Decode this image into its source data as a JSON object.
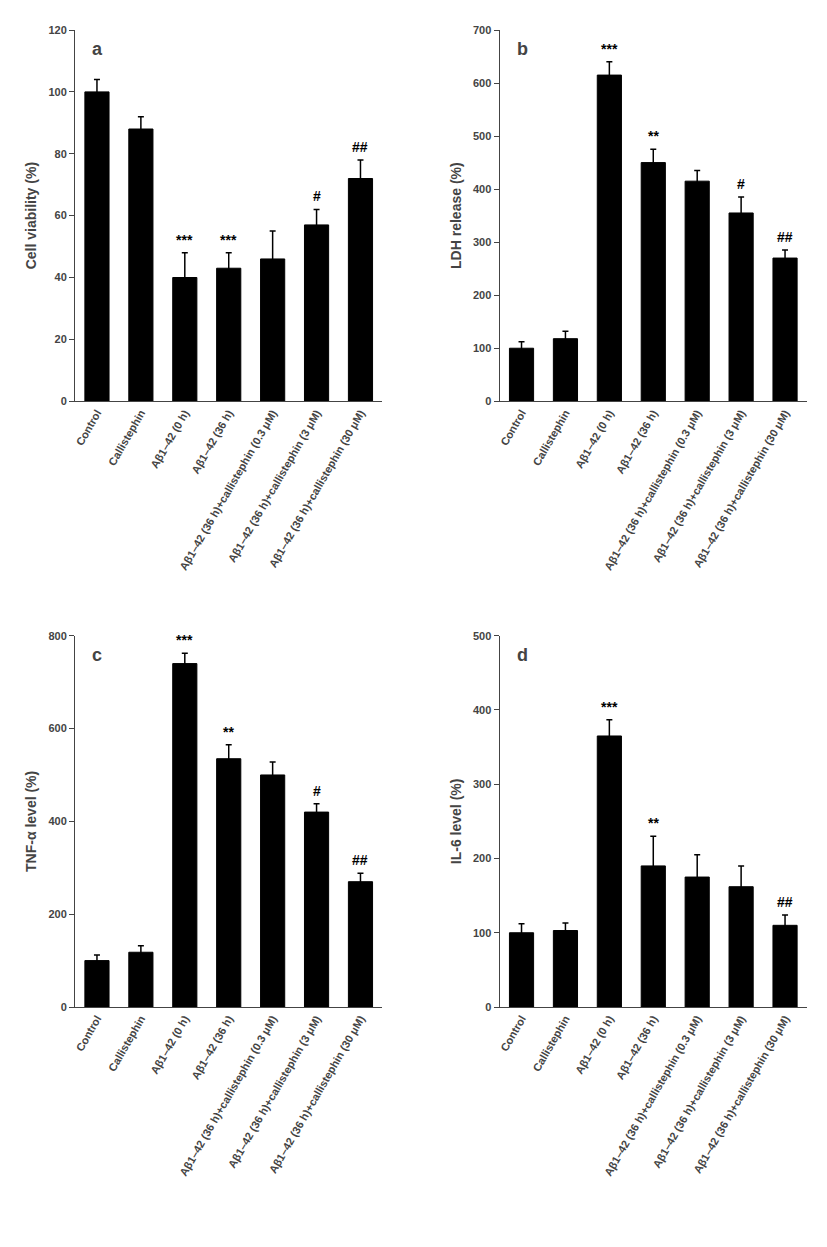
{
  "chart_data": [
    {
      "type": "bar",
      "title": "a",
      "ylabel": "Cell viability (%)",
      "categories": [
        "Control",
        "Callistephin",
        "Aβ1–42 (0 h)",
        "Aβ1–42 (36 h)",
        "Aβ1–42 (36 h)+callistephin (0.3 μM)",
        "Aβ1–42 (36 h)+callistephin (3 μM)",
        "Aβ1–42 (36 h)+callistephin (30 μM)"
      ],
      "values": [
        100,
        88,
        40,
        43,
        46,
        57,
        72
      ],
      "errors": [
        4,
        4,
        8,
        5,
        9,
        5,
        6
      ],
      "color": "#000000",
      "ylim": [
        0,
        120
      ],
      "yticks": [
        0,
        20,
        40,
        60,
        80,
        100,
        120
      ],
      "grid": false,
      "annotations": [
        {
          "category": "Aβ1–42 (0 h)",
          "text": "***"
        },
        {
          "category": "Aβ1–42 (36 h)",
          "text": "***"
        },
        {
          "category": "Aβ1–42 (36 h)+callistephin (3 μM)",
          "text": "#"
        },
        {
          "category": "Aβ1–42 (36 h)+callistephin (30 μM)",
          "text": "##"
        }
      ]
    },
    {
      "type": "bar",
      "title": "b",
      "ylabel": "LDH release (%)",
      "categories": [
        "Control",
        "Callistephin",
        "Aβ1–42 (0 h)",
        "Aβ1–42 (36 h)",
        "Aβ1–42 (36 h)+callistephin (0.3 μM)",
        "Aβ1–42 (36 h)+callistephin (3 μM)",
        "Aβ1–42 (36 h)+callistephin (30 μM)"
      ],
      "values": [
        100,
        118,
        615,
        450,
        415,
        355,
        270
      ],
      "errors": [
        12,
        14,
        25,
        25,
        20,
        30,
        15
      ],
      "color": "#000000",
      "ylim": [
        0,
        700
      ],
      "yticks": [
        0,
        100,
        200,
        300,
        400,
        500,
        600,
        700
      ],
      "grid": false,
      "annotations": [
        {
          "category": "Aβ1–42 (0 h)",
          "text": "***"
        },
        {
          "category": "Aβ1–42 (36 h)",
          "text": "**"
        },
        {
          "category": "Aβ1–42 (36 h)+callistephin (3 μM)",
          "text": "#"
        },
        {
          "category": "Aβ1–42 (36 h)+callistephin (30 μM)",
          "text": "##"
        }
      ]
    },
    {
      "type": "bar",
      "title": "c",
      "ylabel": "TNF-α level (%)",
      "categories": [
        "Control",
        "Callistephin",
        "Aβ1–42 (0 h)",
        "Aβ1–42 (36 h)",
        "Aβ1–42 (36 h)+callistephin (0.3 μM)",
        "Aβ1–42 (36 h)+callistephin (3 μM)",
        "Aβ1–42 (36 h)+callistephin (30 μM)"
      ],
      "values": [
        100,
        118,
        740,
        535,
        500,
        420,
        270
      ],
      "errors": [
        12,
        14,
        22,
        30,
        28,
        18,
        18
      ],
      "color": "#000000",
      "ylim": [
        0,
        800
      ],
      "yticks": [
        0,
        200,
        400,
        600,
        800
      ],
      "grid": false,
      "annotations": [
        {
          "category": "Aβ1–42 (0 h)",
          "text": "***"
        },
        {
          "category": "Aβ1–42 (36 h)",
          "text": "**"
        },
        {
          "category": "Aβ1–42 (36 h)+callistephin (3 μM)",
          "text": "#"
        },
        {
          "category": "Aβ1–42 (36 h)+callistephin (30 μM)",
          "text": "##"
        }
      ]
    },
    {
      "type": "bar",
      "title": "d",
      "ylabel": "IL-6 level (%)",
      "categories": [
        "Control",
        "Callistephin",
        "Aβ1–42 (0 h)",
        "Aβ1–42 (36 h)",
        "Aβ1–42 (36 h)+callistephin (0.3 μM)",
        "Aβ1–42 (36 h)+callistephin (3 μM)",
        "Aβ1–42 (36 h)+callistephin (30 μM)"
      ],
      "values": [
        100,
        103,
        365,
        190,
        175,
        162,
        110
      ],
      "errors": [
        12,
        10,
        22,
        40,
        30,
        28,
        14
      ],
      "color": "#000000",
      "ylim": [
        0,
        500
      ],
      "yticks": [
        0,
        100,
        200,
        300,
        400,
        500
      ],
      "grid": false,
      "annotations": [
        {
          "category": "Aβ1–42 (0 h)",
          "text": "***"
        },
        {
          "category": "Aβ1–42 (36 h)",
          "text": "**"
        },
        {
          "category": "Aβ1–42 (36 h)+callistephin (30 μM)",
          "text": "##"
        }
      ]
    }
  ]
}
